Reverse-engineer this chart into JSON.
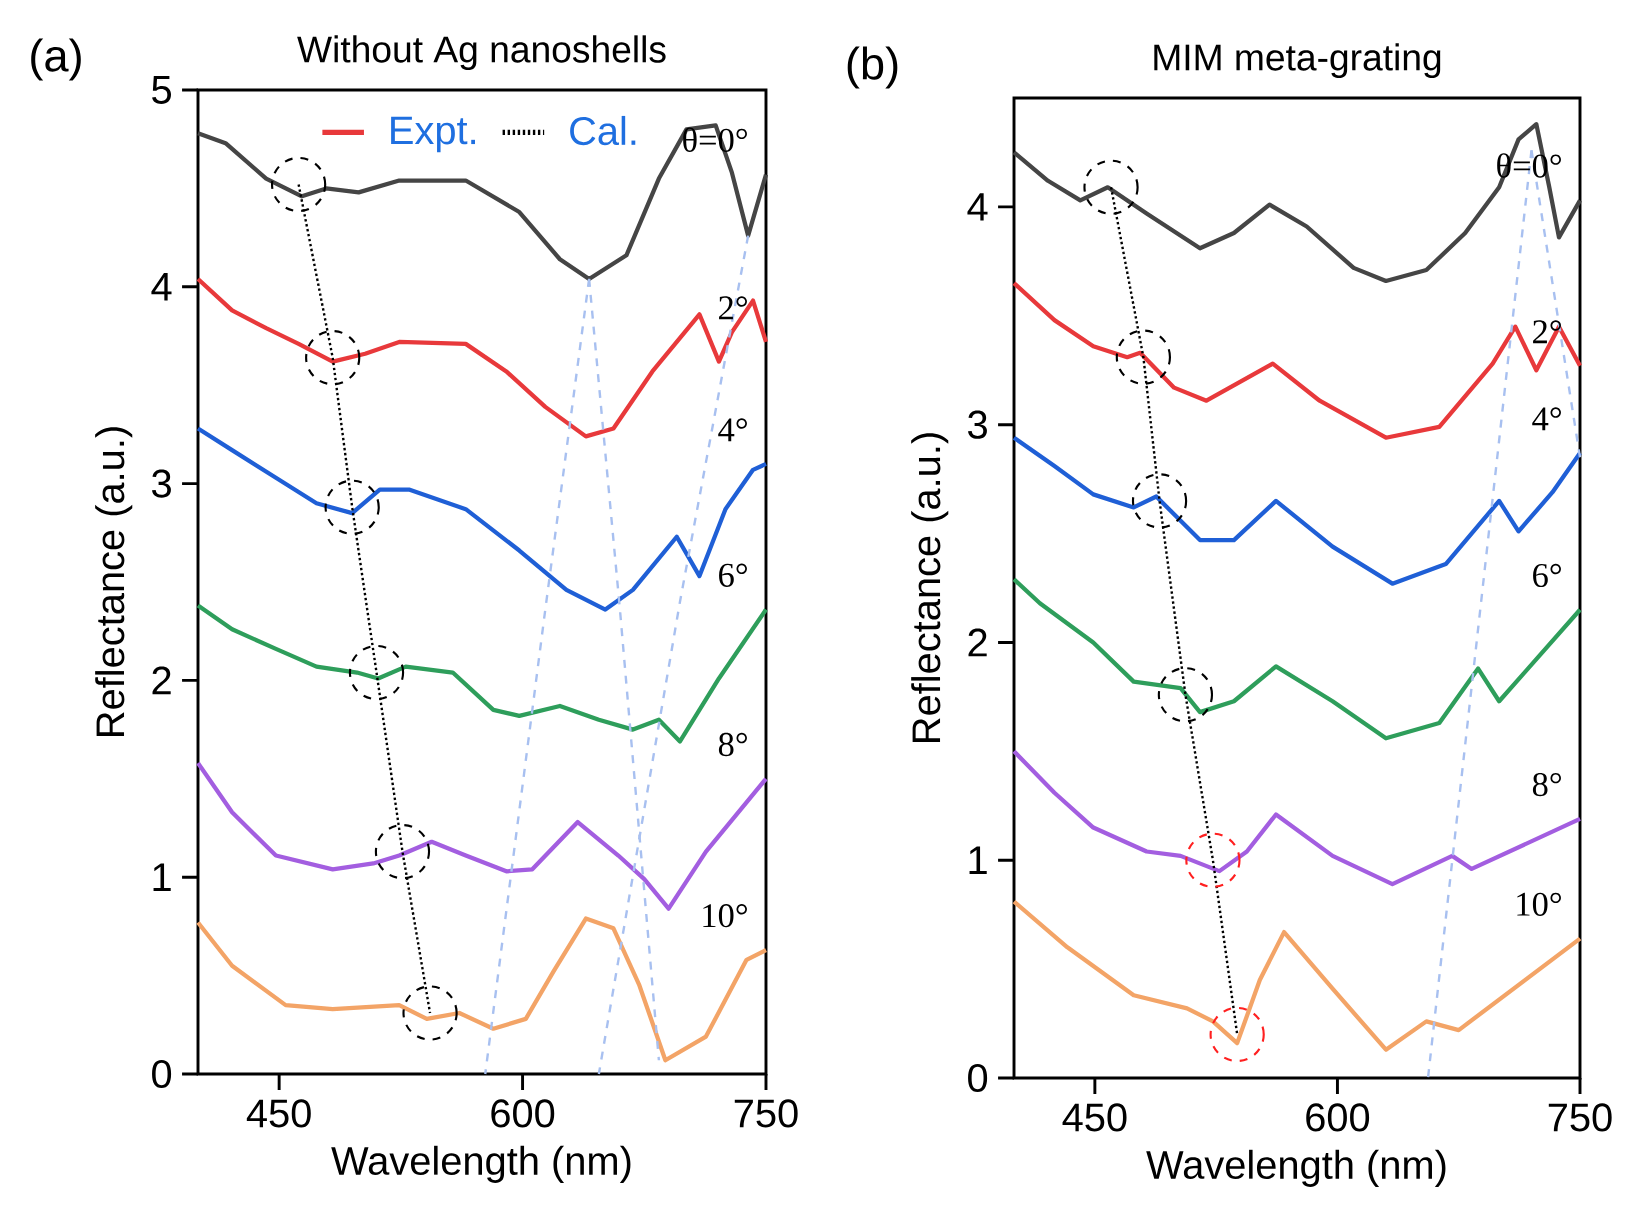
{
  "chart_data": [
    {
      "type": "line",
      "title": "Without Ag nanoshells",
      "xlabel": "Wavelength (nm)",
      "ylabel": "Reflectance (a.u.)",
      "xlim": [
        400,
        750
      ],
      "ylim": [
        0,
        5
      ],
      "xticks": [
        450,
        600,
        750
      ],
      "yticks": [
        0,
        1,
        2,
        3,
        4,
        5
      ],
      "legend": "top",
      "line_style": "solid",
      "marker": "none",
      "series": [
        {
          "color": "#454545",
          "x": [
            400,
            417,
            442,
            464,
            479,
            499,
            524,
            565,
            598,
            623,
            641,
            664,
            684,
            701,
            719,
            729,
            739,
            750
          ],
          "values": [
            4.78,
            4.73,
            4.55,
            4.46,
            4.5,
            4.48,
            4.54,
            4.54,
            4.38,
            4.14,
            4.04,
            4.16,
            4.55,
            4.8,
            4.82,
            4.58,
            4.26,
            4.57
          ]
        },
        {
          "name": "Expt.",
          "color": "#e8393b",
          "x": [
            400,
            421,
            442,
            462,
            483,
            503,
            524,
            565,
            590,
            614,
            639,
            656,
            680,
            709,
            721,
            729,
            742,
            750
          ],
          "values": [
            4.04,
            3.88,
            3.79,
            3.71,
            3.62,
            3.66,
            3.72,
            3.71,
            3.57,
            3.39,
            3.24,
            3.28,
            3.57,
            3.86,
            3.62,
            3.77,
            3.93,
            3.72
          ]
        },
        {
          "color": "#1f5fd6",
          "x": [
            400,
            421,
            448,
            473,
            495,
            512,
            530,
            565,
            598,
            627,
            651,
            668,
            695,
            709,
            725,
            742,
            750
          ],
          "values": [
            3.28,
            3.17,
            3.03,
            2.9,
            2.85,
            2.97,
            2.97,
            2.87,
            2.66,
            2.46,
            2.36,
            2.46,
            2.73,
            2.53,
            2.87,
            3.07,
            3.1
          ]
        },
        {
          "color": "#2e9e5b",
          "x": [
            400,
            421,
            448,
            473,
            498,
            511,
            528,
            557,
            582,
            598,
            623,
            647,
            668,
            684,
            697,
            721,
            750
          ],
          "values": [
            2.38,
            2.26,
            2.16,
            2.07,
            2.04,
            2.01,
            2.07,
            2.04,
            1.85,
            1.82,
            1.87,
            1.8,
            1.75,
            1.8,
            1.69,
            2.01,
            2.36
          ]
        },
        {
          "color": "#a35ee0",
          "x": [
            400,
            421,
            448,
            483,
            508,
            524,
            544,
            565,
            590,
            606,
            634,
            659,
            675,
            690,
            713,
            750
          ],
          "values": [
            1.58,
            1.33,
            1.11,
            1.04,
            1.07,
            1.11,
            1.18,
            1.11,
            1.03,
            1.04,
            1.28,
            1.11,
            0.99,
            0.84,
            1.13,
            1.5
          ]
        },
        {
          "color": "#f3a467",
          "x": [
            400,
            421,
            454,
            483,
            524,
            541,
            561,
            582,
            602,
            619,
            639,
            656,
            672,
            688,
            713,
            738,
            750
          ],
          "values": [
            0.77,
            0.55,
            0.35,
            0.33,
            0.35,
            0.28,
            0.31,
            0.23,
            0.28,
            0.52,
            0.79,
            0.74,
            0.45,
            0.07,
            0.19,
            0.58,
            0.63
          ]
        },
        {
          "name": "Cal.",
          "color": "#000000",
          "line_style": "dotted",
          "marker": "circle",
          "colors": [
            "#000000",
            "#000000",
            "#000000",
            "#000000",
            "#000000",
            "#000000"
          ],
          "x": [
            462,
            483,
            495,
            510,
            526,
            543
          ],
          "values": [
            4.52,
            3.64,
            2.88,
            2.04,
            1.13,
            0.31
          ]
        },
        {
          "color": "#a8c0f0",
          "line_style": "dashed",
          "x": [
            641,
            614,
            577
          ],
          "values": [
            4.04,
            2.36,
            0
          ]
        },
        {
          "color": "#a8c0f0",
          "line_style": "dashed",
          "x": [
            641,
            660,
            684
          ],
          "values": [
            4.04,
            2.36,
            0.07
          ]
        },
        {
          "color": "#a8c0f0",
          "line_style": "dashed",
          "x": [
            739,
            697,
            647
          ],
          "values": [
            4.26,
            2.4,
            0
          ]
        }
      ],
      "annotations": [
        "(a)",
        "θ=0°",
        "2°",
        "4°",
        "6°",
        "8°",
        "10°"
      ]
    },
    {
      "type": "line",
      "title": "MIM  meta-grating",
      "xlabel": "Wavelength (nm)",
      "ylabel": "Reflectance (a.u.)",
      "xlim": [
        400,
        750
      ],
      "ylim": [
        0,
        4.5
      ],
      "xticks": [
        450,
        600,
        750
      ],
      "yticks": [
        0,
        1,
        2,
        3,
        4
      ],
      "line_style": "solid",
      "marker": "none",
      "series": [
        {
          "color": "#454545",
          "x": [
            400,
            421,
            441,
            458,
            482,
            515,
            536,
            558,
            581,
            610,
            630,
            655,
            679,
            700,
            712,
            723,
            731,
            737,
            750
          ],
          "values": [
            4.25,
            4.12,
            4.03,
            4.09,
            3.97,
            3.81,
            3.88,
            4.01,
            3.91,
            3.72,
            3.66,
            3.71,
            3.88,
            4.09,
            4.31,
            4.38,
            4.09,
            3.86,
            4.03
          ]
        },
        {
          "color": "#e8393b",
          "x": [
            400,
            425,
            449,
            470,
            478,
            499,
            519,
            560,
            589,
            630,
            663,
            696,
            710,
            723,
            737,
            750
          ],
          "values": [
            3.65,
            3.48,
            3.36,
            3.31,
            3.33,
            3.17,
            3.11,
            3.28,
            3.11,
            2.94,
            2.99,
            3.28,
            3.45,
            3.25,
            3.45,
            3.27
          ]
        },
        {
          "color": "#1f5fd6",
          "x": [
            400,
            425,
            449,
            474,
            488,
            515,
            536,
            562,
            597,
            634,
            667,
            700,
            712,
            733,
            750
          ],
          "values": [
            2.94,
            2.81,
            2.68,
            2.62,
            2.67,
            2.47,
            2.47,
            2.65,
            2.44,
            2.27,
            2.36,
            2.65,
            2.51,
            2.69,
            2.87
          ]
        },
        {
          "color": "#2e9e5b",
          "x": [
            400,
            416,
            449,
            474,
            503,
            515,
            536,
            562,
            597,
            630,
            663,
            687,
            700,
            750
          ],
          "values": [
            2.29,
            2.18,
            2.0,
            1.82,
            1.79,
            1.68,
            1.73,
            1.89,
            1.73,
            1.56,
            1.63,
            1.88,
            1.73,
            2.15
          ]
        },
        {
          "color": "#a35ee0",
          "x": [
            400,
            425,
            449,
            482,
            503,
            527,
            544,
            562,
            597,
            634,
            671,
            683,
            750
          ],
          "values": [
            1.5,
            1.31,
            1.15,
            1.04,
            1.02,
            0.95,
            1.04,
            1.21,
            1.02,
            0.89,
            1.02,
            0.96,
            1.19
          ]
        },
        {
          "color": "#f3a467",
          "x": [
            400,
            433,
            474,
            507,
            523,
            538,
            552,
            567,
            597,
            630,
            655,
            675,
            750
          ],
          "values": [
            0.81,
            0.6,
            0.38,
            0.32,
            0.26,
            0.16,
            0.45,
            0.67,
            0.41,
            0.13,
            0.26,
            0.22,
            0.64
          ]
        },
        {
          "color": "#000000",
          "line_style": "dotted",
          "marker": "circle",
          "colors": [
            "#000000",
            "#000000",
            "#000000",
            "#000000",
            "#ff2020",
            "#ff2020"
          ],
          "x": [
            460,
            480,
            490,
            506,
            523,
            538
          ],
          "values": [
            4.09,
            3.31,
            2.65,
            1.76,
            1.0,
            0.2
          ]
        },
        {
          "color": "#a8c0f0",
          "line_style": "dashed",
          "x": [
            720,
            656
          ],
          "values": [
            4.26,
            0
          ]
        },
        {
          "color": "#a8c0f0",
          "line_style": "dashed",
          "x": [
            720,
            750
          ],
          "values": [
            4.26,
            2.85
          ]
        }
      ],
      "annotations": [
        "(b)",
        "θ=0°",
        "2°",
        "4°",
        "6°",
        "8°",
        "10°"
      ]
    }
  ]
}
